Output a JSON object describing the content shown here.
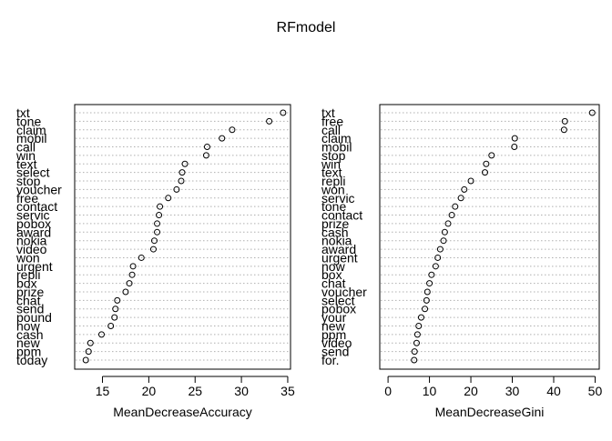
{
  "title": "RFmodel",
  "chart_data": [
    {
      "type": "scatter",
      "style": "dotchart",
      "xlabel": "MeanDecreaseAccuracy",
      "xlim": [
        12,
        35.3
      ],
      "xticks": [
        15,
        20,
        25,
        30,
        35
      ],
      "grid": "dotted horizontal per row",
      "categories": [
        "txt",
        "tone",
        "claim",
        "mobil",
        "call",
        "win",
        "text",
        "select",
        "stop",
        "voucher",
        "free",
        "contact",
        "servic",
        "pobox",
        "award",
        "nokia",
        "video",
        "won",
        "urgent",
        "repli",
        "box",
        "prize",
        "chat",
        "send",
        "pound",
        "now",
        "cash",
        "new",
        "ppm",
        "today"
      ],
      "values": [
        34.5,
        33.0,
        29.0,
        27.9,
        26.3,
        26.2,
        23.9,
        23.6,
        23.5,
        23.0,
        22.1,
        21.2,
        21.1,
        20.9,
        20.9,
        20.6,
        20.5,
        19.2,
        18.3,
        18.2,
        17.9,
        17.5,
        16.6,
        16.4,
        16.3,
        15.9,
        14.9,
        13.7,
        13.5,
        13.2
      ]
    },
    {
      "type": "scatter",
      "style": "dotchart",
      "xlabel": "MeanDecreaseGini",
      "xlim": [
        -2,
        51
      ],
      "xticks": [
        0,
        10,
        20,
        30,
        40,
        50
      ],
      "grid": "dotted horizontal per row",
      "categories": [
        "txt",
        "free",
        "call",
        "claim",
        "mobil",
        "stop",
        "win",
        "text",
        "repli",
        "won",
        "servic",
        "tone",
        "contact",
        "prize",
        "cash",
        "nokia",
        "award",
        "urgent",
        "now",
        "box",
        "chat",
        "voucher",
        "select",
        "pobox",
        "your",
        "new",
        "ppm",
        "video",
        "send",
        "for."
      ],
      "values": [
        49.3,
        42.7,
        42.5,
        30.6,
        30.5,
        25.0,
        23.7,
        23.4,
        20.0,
        18.4,
        17.6,
        16.2,
        15.4,
        14.5,
        13.7,
        13.4,
        12.6,
        12.0,
        11.5,
        10.5,
        10.0,
        9.5,
        9.3,
        8.9,
        8.0,
        7.4,
        7.1,
        6.9,
        6.4,
        6.3
      ]
    }
  ]
}
